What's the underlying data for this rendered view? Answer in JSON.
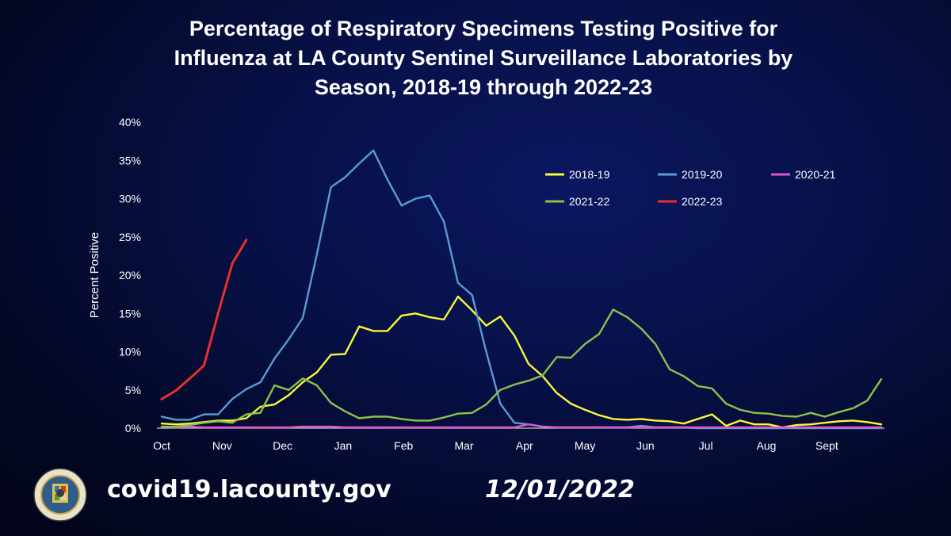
{
  "header": {
    "title_line1": "Percentage of Respiratory Specimens Testing Positive for",
    "title_line2": "Influenza at LA County Sentinel Surveillance Laboratories by",
    "title_line3": "Season, 2018-19 through 2022-23"
  },
  "footer": {
    "url": "covid19.lacounty.gov",
    "date": "12/01/2022",
    "seal_top_text": "COUNTY OF LOS ANGELES",
    "seal_bottom_text": "CALIFORNIA"
  },
  "chart_data": {
    "type": "line",
    "title": "Percentage of Respiratory Specimens Testing Positive for Influenza at LA County Sentinel Surveillance Laboratories by Season, 2018-19 through 2022-23",
    "xlabel": "",
    "ylabel": "Percent Positive",
    "ylim": [
      0,
      40
    ],
    "yticks": [
      "0%",
      "5%",
      "10%",
      "15%",
      "20%",
      "25%",
      "30%",
      "35%",
      "40%"
    ],
    "x_tick_labels": [
      "Oct",
      "Nov",
      "Dec",
      "Jan",
      "Feb",
      "Mar",
      "Apr",
      "May",
      "Jun",
      "Jul",
      "Aug",
      "Sept"
    ],
    "legend": "top-right",
    "grid": false,
    "series": [
      {
        "name": "2018-19",
        "color": "#f7f93a",
        "values": [
          0.6,
          0.5,
          0.6,
          0.8,
          1.0,
          1.0,
          1.3,
          2.8,
          3.1,
          4.3,
          6.0,
          7.3,
          9.6,
          9.7,
          13.3,
          12.7,
          12.7,
          14.7,
          15.0,
          14.5,
          14.2,
          17.2,
          15.4,
          13.4,
          14.6,
          12.1,
          8.4,
          6.8,
          4.6,
          3.2,
          2.4,
          1.7,
          1.2,
          1.1,
          1.2,
          1.0,
          0.9,
          0.6,
          1.2,
          1.8,
          0.3,
          1.0,
          0.5,
          0.5,
          0.1,
          0.4,
          0.5,
          0.7,
          0.9,
          1.0,
          0.8,
          0.5
        ]
      },
      {
        "name": "2019-20",
        "color": "#5b9bd5",
        "values": [
          1.5,
          1.1,
          1.1,
          1.8,
          1.8,
          3.8,
          5.1,
          6.0,
          9.1,
          11.6,
          14.4,
          22.7,
          31.5,
          32.8,
          34.6,
          36.3,
          32.5,
          29.1,
          30.0,
          30.4,
          27.0,
          19.0,
          17.4,
          10.0,
          3.2,
          0.7,
          0.5,
          0.2,
          0.1,
          0.1,
          0.1,
          0.1,
          0.1,
          0.1,
          0.3,
          0.1,
          0.1,
          0.1,
          0.0,
          0.0,
          0.0,
          0.0,
          0.0,
          0.0,
          0.0,
          0.0,
          0.0,
          0.0,
          0.0,
          0.0,
          0.0,
          0.0
        ]
      },
      {
        "name": "2020-21",
        "color": "#e056d0",
        "values": [
          0.2,
          0.1,
          0.2,
          0.1,
          0.1,
          0.1,
          0.1,
          0.1,
          0.1,
          0.1,
          0.2,
          0.2,
          0.2,
          0.1,
          0.1,
          0.1,
          0.1,
          0.1,
          0.1,
          0.1,
          0.1,
          0.1,
          0.1,
          0.1,
          0.1,
          0.1,
          0.5,
          0.2,
          0.1,
          0.1,
          0.1,
          0.1,
          0.1,
          0.1,
          0.1,
          0.1,
          0.1,
          0.1,
          0.1,
          0.1,
          0.1,
          0.1,
          0.1,
          0.1,
          0.1,
          0.1,
          0.1,
          0.1,
          0.1,
          0.1,
          0.1,
          0.1
        ]
      },
      {
        "name": "2021-22",
        "color": "#8bc34a",
        "values": [
          0.2,
          0.2,
          0.4,
          0.7,
          0.9,
          0.7,
          1.8,
          2.0,
          5.6,
          5.0,
          6.5,
          5.6,
          3.3,
          2.2,
          1.3,
          1.5,
          1.5,
          1.2,
          1.0,
          1.0,
          1.4,
          1.9,
          2.0,
          3.1,
          5.0,
          5.7,
          6.2,
          6.9,
          9.3,
          9.2,
          11.0,
          12.3,
          15.5,
          14.5,
          13.0,
          11.0,
          7.7,
          6.8,
          5.5,
          5.2,
          3.2,
          2.4,
          2.0,
          1.9,
          1.6,
          1.5,
          2.0,
          1.5,
          2.1,
          2.6,
          3.6,
          6.4
        ]
      },
      {
        "name": "2022-23",
        "color": "#e8302a",
        "values": [
          3.8,
          4.9,
          6.5,
          8.2,
          15.0,
          21.5,
          24.6
        ]
      }
    ]
  }
}
